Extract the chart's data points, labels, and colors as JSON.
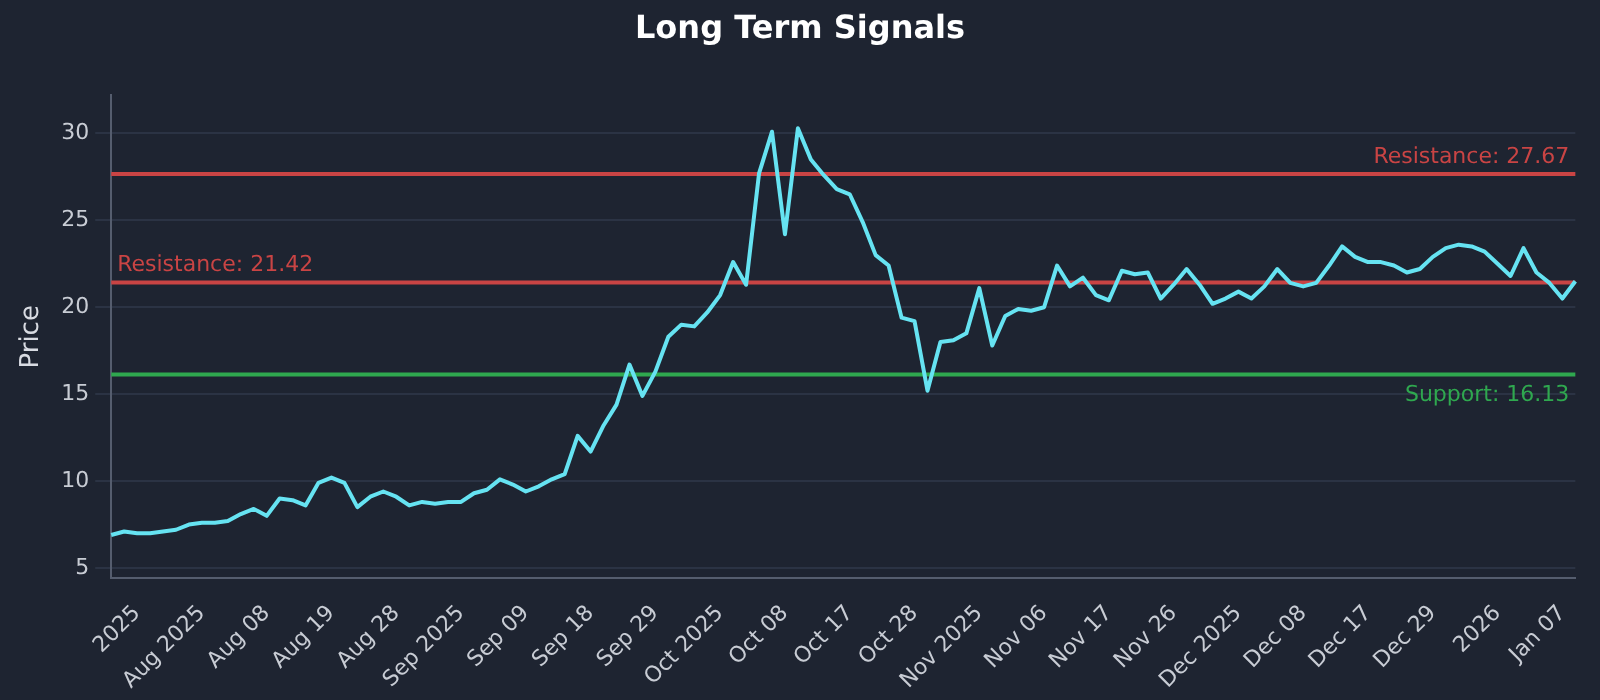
{
  "chart_data": {
    "type": "line",
    "title": "Long Term Signals",
    "ylabel": "Price",
    "categories": [
      null,
      null,
      "2025",
      null,
      null,
      null,
      null,
      "Aug 2025",
      null,
      null,
      null,
      null,
      "Aug 08",
      null,
      null,
      null,
      null,
      "Aug 19",
      null,
      null,
      null,
      null,
      "Aug 28",
      null,
      null,
      null,
      null,
      "Sep 2025",
      null,
      null,
      null,
      null,
      "Sep 09",
      null,
      null,
      null,
      null,
      "Sep 18",
      null,
      null,
      null,
      null,
      "Sep 29",
      null,
      null,
      null,
      null,
      "Oct 2025",
      null,
      null,
      null,
      null,
      "Oct 08",
      null,
      null,
      null,
      null,
      "Oct 17",
      null,
      null,
      null,
      null,
      "Oct 28",
      null,
      null,
      null,
      null,
      "Nov 2025",
      null,
      null,
      null,
      null,
      "Nov 06",
      null,
      null,
      null,
      null,
      "Nov 17",
      null,
      null,
      null,
      null,
      "Nov 26",
      null,
      null,
      null,
      null,
      "Dec 2025",
      null,
      null,
      null,
      null,
      "Dec 08",
      null,
      null,
      null,
      null,
      "Dec 17",
      null,
      null,
      null,
      null,
      "Dec 29",
      null,
      null,
      null,
      null,
      "2026",
      null,
      null,
      null,
      null,
      "Jan 07",
      null
    ],
    "series": [
      {
        "color": "#66e3f2",
        "values": [
          6.9,
          7.1,
          7.0,
          7.0,
          7.1,
          7.2,
          7.5,
          7.6,
          7.6,
          7.7,
          8.1,
          8.4,
          8.0,
          9.0,
          8.9,
          8.6,
          9.9,
          10.2,
          9.9,
          8.5,
          9.1,
          9.4,
          9.1,
          8.6,
          8.8,
          8.7,
          8.8,
          8.8,
          9.3,
          9.5,
          10.1,
          9.8,
          9.4,
          9.7,
          10.1,
          10.4,
          12.6,
          11.7,
          13.2,
          14.4,
          16.7,
          14.9,
          16.3,
          18.3,
          19.0,
          18.9,
          19.7,
          20.7,
          22.6,
          21.3,
          27.7,
          30.1,
          24.2,
          30.3,
          28.5,
          27.6,
          26.8,
          26.5,
          24.9,
          23.0,
          22.4,
          19.4,
          19.2,
          15.2,
          18.0,
          18.1,
          18.5,
          21.1,
          17.8,
          19.5,
          19.9,
          19.8,
          20.0,
          22.4,
          21.2,
          21.7,
          20.7,
          20.4,
          22.1,
          21.9,
          22.0,
          20.5,
          21.3,
          22.2,
          21.3,
          20.2,
          20.5,
          20.9,
          20.5,
          21.2,
          22.2,
          21.4,
          21.2,
          21.4,
          22.4,
          23.5,
          22.9,
          22.6,
          22.6,
          22.4,
          22.0,
          22.2,
          22.9,
          23.4,
          23.6,
          23.5,
          23.2,
          22.5,
          21.8,
          23.4,
          22.0,
          21.4,
          20.5,
          21.5
        ]
      }
    ],
    "ylim": [
      4.4,
      32.2
    ],
    "yticks": [
      5,
      10,
      15,
      20,
      25,
      30
    ],
    "grid": "y",
    "legend": false,
    "marker": "none",
    "line_style": "solid",
    "ref_lines": [
      {
        "axis": "y",
        "value": 27.67,
        "label": "Resistance: 27.67",
        "color": "#c94444"
      },
      {
        "axis": "y",
        "value": 21.42,
        "label": "Resistance: 21.42",
        "color": "#c94444"
      },
      {
        "axis": "y",
        "value": 16.13,
        "label": "Support: 16.13",
        "color": "#2fa84f"
      }
    ]
  }
}
